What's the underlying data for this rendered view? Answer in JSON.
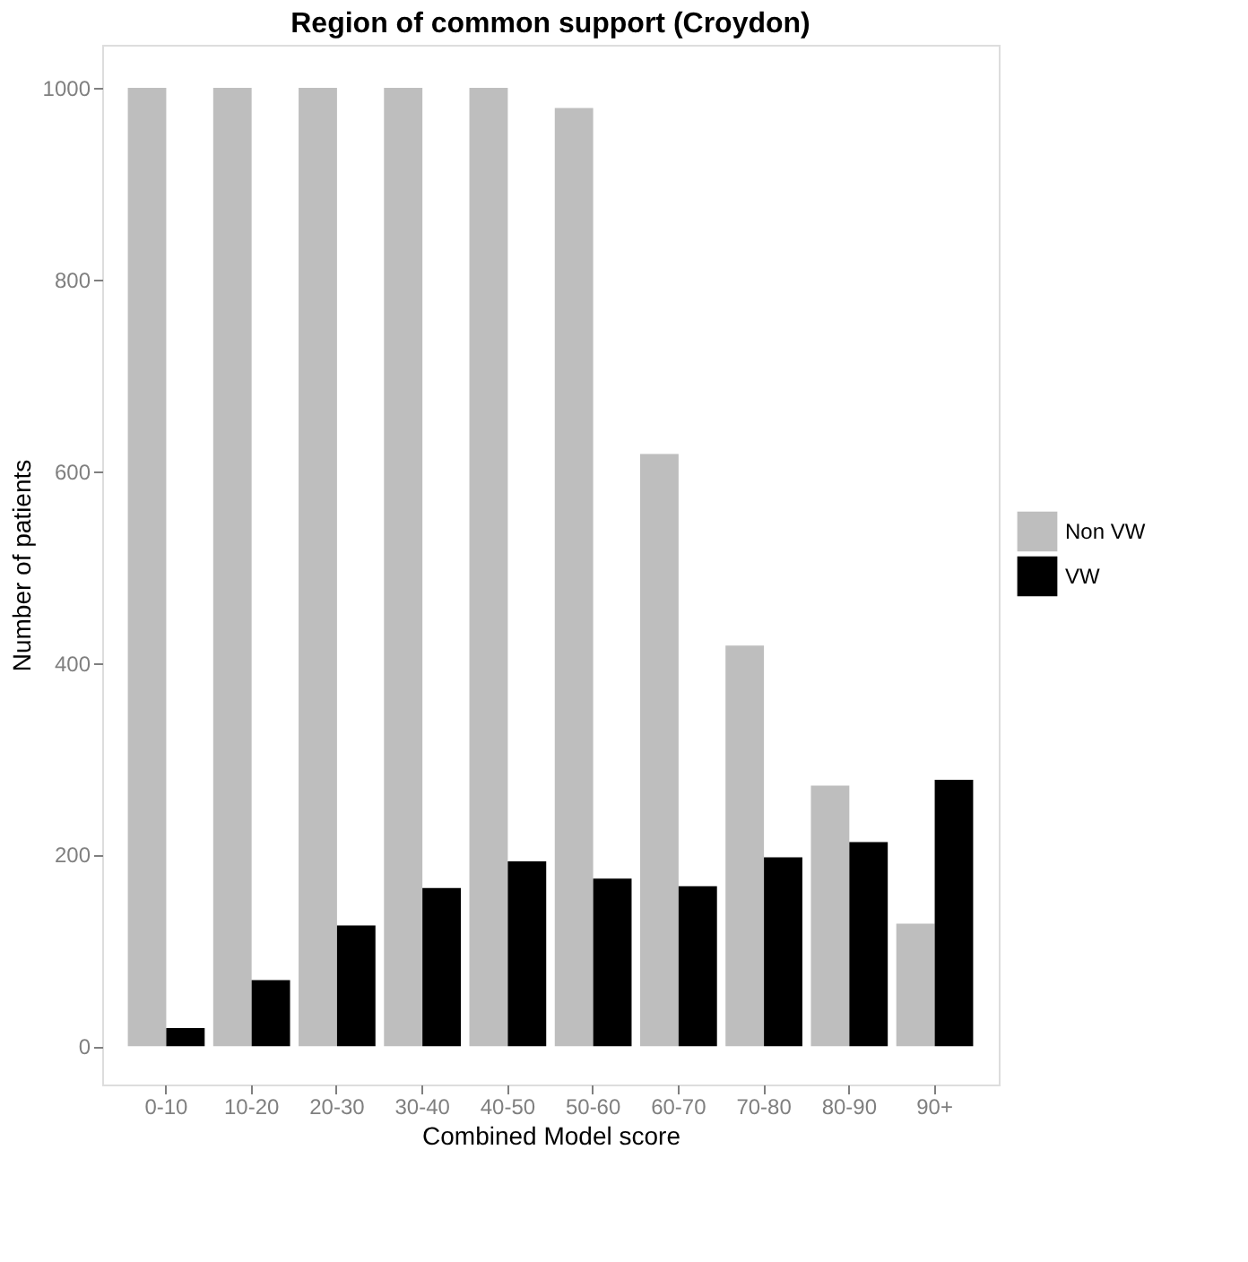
{
  "chart_data": {
    "type": "bar",
    "title": "Region of common support (Croydon)",
    "xlabel": "Combined Model score",
    "ylabel": "Number of patients",
    "categories": [
      "0-10",
      "10-20",
      "20-30",
      "30-40",
      "40-50",
      "50-60",
      "60-70",
      "70-80",
      "80-90",
      "90+"
    ],
    "series": [
      {
        "name": "Non VW",
        "color": "#bebebe",
        "values": [
          1000,
          1000,
          1000,
          1000,
          1000,
          979,
          618,
          418,
          272,
          128
        ]
      },
      {
        "name": "VW",
        "color": "#000000",
        "values": [
          19,
          69,
          126,
          165,
          193,
          175,
          167,
          197,
          213,
          278
        ]
      }
    ],
    "ylim": [
      -40,
      1045
    ],
    "yticks": [
      0,
      200,
      400,
      600,
      800,
      1000
    ],
    "legend": "right"
  }
}
